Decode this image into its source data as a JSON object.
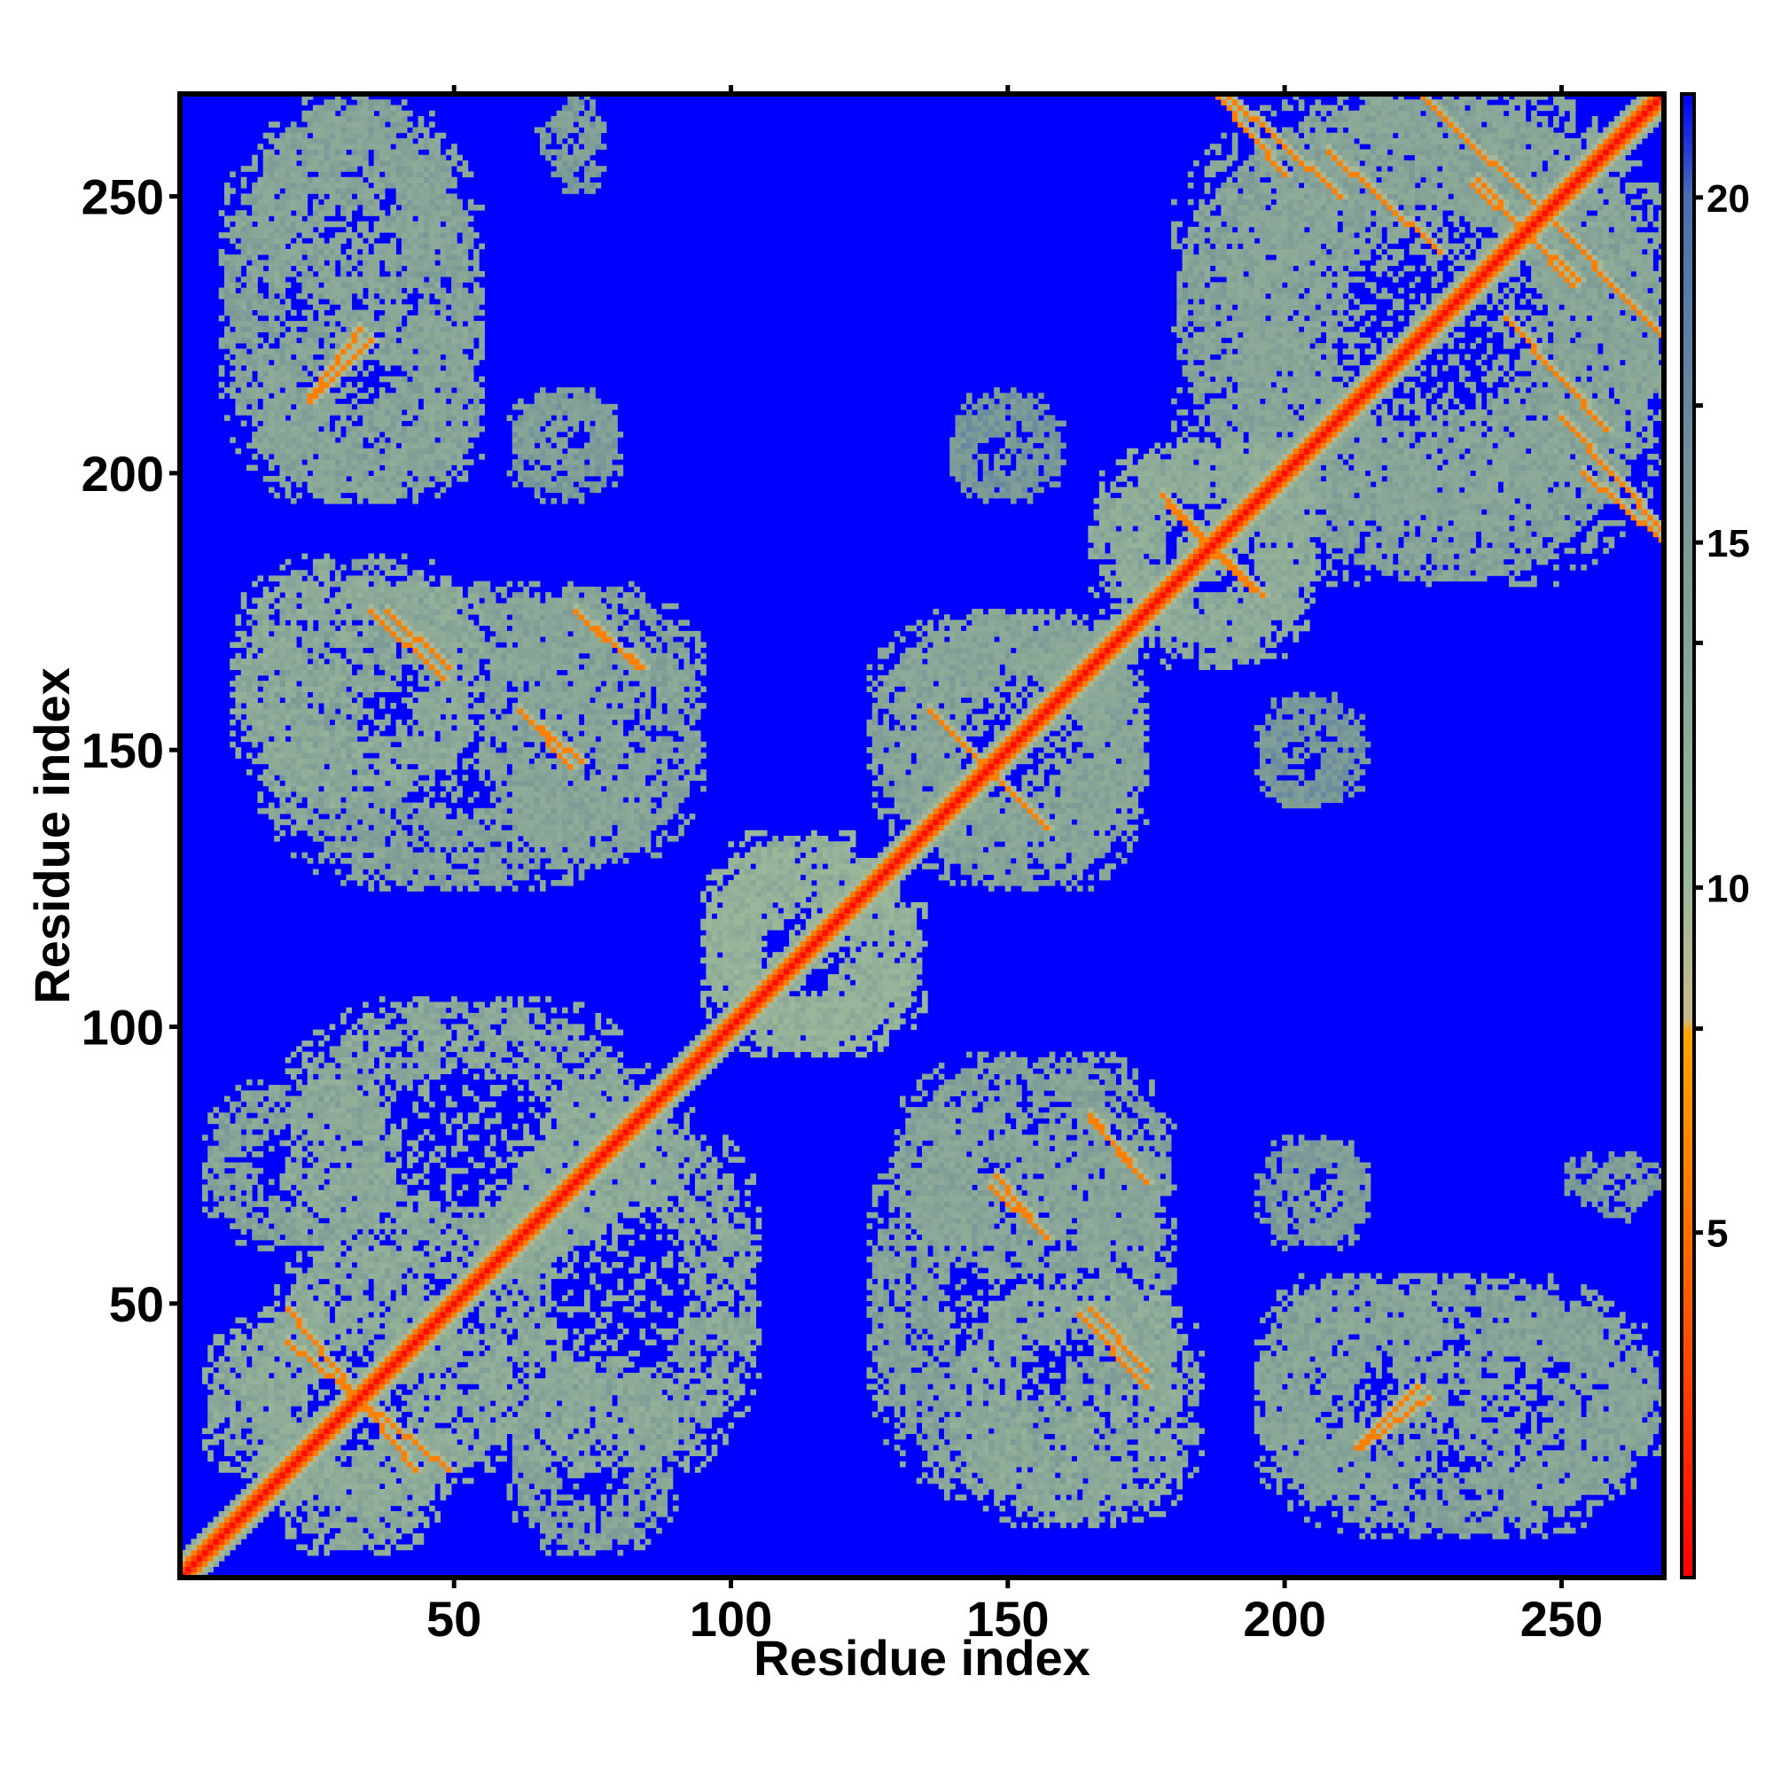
{
  "chart_data": {
    "type": "heatmap",
    "title": "",
    "xlabel": "Residue index",
    "ylabel": "Residue index",
    "xlim": [
      1,
      268
    ],
    "ylim": [
      1,
      268
    ],
    "x_ticks": [
      50,
      100,
      150,
      200,
      250
    ],
    "y_ticks": [
      50,
      100,
      150,
      200,
      250
    ],
    "colorbar": {
      "ticks": [
        5,
        10,
        15,
        20
      ],
      "range": [
        0,
        21.5
      ],
      "colors": [
        {
          "value": 0,
          "color": "#ff0000"
        },
        {
          "value": 4,
          "color": "#ff5a00"
        },
        {
          "value": 7.9,
          "color": "#ffa500"
        },
        {
          "value": 8.1,
          "color": "#c9b98a"
        },
        {
          "value": 10,
          "color": "#9cb89a"
        },
        {
          "value": 15,
          "color": "#7c9a96"
        },
        {
          "value": 20,
          "color": "#4a6fb0"
        },
        {
          "value": 21.5,
          "color": "#0000ff"
        }
      ]
    },
    "background_value": 21.5,
    "background_color": "#0000ff",
    "grid": false,
    "diagonal": {
      "from": 1,
      "to": 268,
      "value": 2
    },
    "cross_strands": [
      {
        "from": [
          20,
          49
        ],
        "to": [
          43,
          20
        ],
        "value": 6
      },
      {
        "from": [
          35,
          175
        ],
        "to": [
          48,
          163
        ],
        "value": 6
      },
      {
        "from": [
          73,
          174
        ],
        "to": [
          84,
          165
        ],
        "value": 6
      },
      {
        "from": [
          63,
          156
        ],
        "to": [
          73,
          148
        ],
        "value": 6
      },
      {
        "from": [
          137,
          156
        ],
        "to": [
          157,
          136
        ],
        "value": 6
      },
      {
        "from": [
          24,
          214
        ],
        "to": [
          33,
          226
        ],
        "value": 6
      },
      {
        "from": [
          165,
          49
        ],
        "to": [
          175,
          38
        ],
        "value": 6
      },
      {
        "from": [
          147,
          71
        ],
        "to": [
          157,
          62
        ],
        "value": 6
      },
      {
        "from": [
          165,
          83
        ],
        "to": [
          175,
          72
        ],
        "value": 6
      },
      {
        "from": [
          213,
          24
        ],
        "to": [
          224,
          35
        ],
        "value": 6
      },
      {
        "from": [
          178,
          196
        ],
        "to": [
          194,
          179
        ],
        "value": 6
      },
      {
        "from": [
          190,
          268
        ],
        "to": [
          210,
          250
        ],
        "value": 6
      },
      {
        "from": [
          225,
          268
        ],
        "to": [
          250,
          244
        ],
        "value": 6
      },
      {
        "from": [
          240,
          228
        ],
        "to": [
          258,
          208
        ],
        "value": 6
      },
      {
        "from": [
          254,
          200
        ],
        "to": [
          268,
          188
        ],
        "value": 6
      },
      {
        "from": [
          235,
          253
        ],
        "to": [
          252,
          234
        ],
        "value": 6
      }
    ],
    "contact_regions": [
      {
        "x": [
          15,
          50
        ],
        "y": [
          5,
          60
        ],
        "value": 13
      },
      {
        "x": [
          55,
          105
        ],
        "y": [
          20,
          85
        ],
        "value": 13
      },
      {
        "x": [
          5,
          40
        ],
        "y": [
          60,
          90
        ],
        "value": 14
      },
      {
        "x": [
          95,
          135
        ],
        "y": [
          95,
          130
        ],
        "value": 12
      },
      {
        "x": [
          10,
          55
        ],
        "y": [
          140,
          185
        ],
        "value": 13
      },
      {
        "x": [
          55,
          95
        ],
        "y": [
          130,
          180
        ],
        "value": 14
      },
      {
        "x": [
          8,
          55
        ],
        "y": [
          195,
          265
        ],
        "value": 14
      },
      {
        "x": [
          62,
          80
        ],
        "y": [
          200,
          215
        ],
        "value": 15
      },
      {
        "x": [
          65,
          75
        ],
        "y": [
          255,
          265
        ],
        "value": 15
      },
      {
        "x": [
          125,
          175
        ],
        "y": [
          130,
          175
        ],
        "value": 14
      },
      {
        "x": [
          140,
          155
        ],
        "y": [
          195,
          210
        ],
        "value": 16
      },
      {
        "x": [
          125,
          180
        ],
        "y": [
          15,
          85
        ],
        "value": 14
      },
      {
        "x": [
          165,
          205
        ],
        "y": [
          170,
          205
        ],
        "value": 13
      },
      {
        "x": [
          180,
          268
        ],
        "y": [
          190,
          268
        ],
        "value": 14
      },
      {
        "x": [
          195,
          230
        ],
        "y": [
          15,
          55
        ],
        "value": 14
      },
      {
        "x": [
          230,
          268
        ],
        "y": [
          15,
          50
        ],
        "value": 14
      },
      {
        "x": [
          195,
          215
        ],
        "y": [
          60,
          80
        ],
        "value": 15
      },
      {
        "x": [
          195,
          215
        ],
        "y": [
          140,
          160
        ],
        "value": 16
      },
      {
        "x": [
          250,
          268
        ],
        "y": [
          68,
          77
        ],
        "value": 15
      }
    ]
  }
}
